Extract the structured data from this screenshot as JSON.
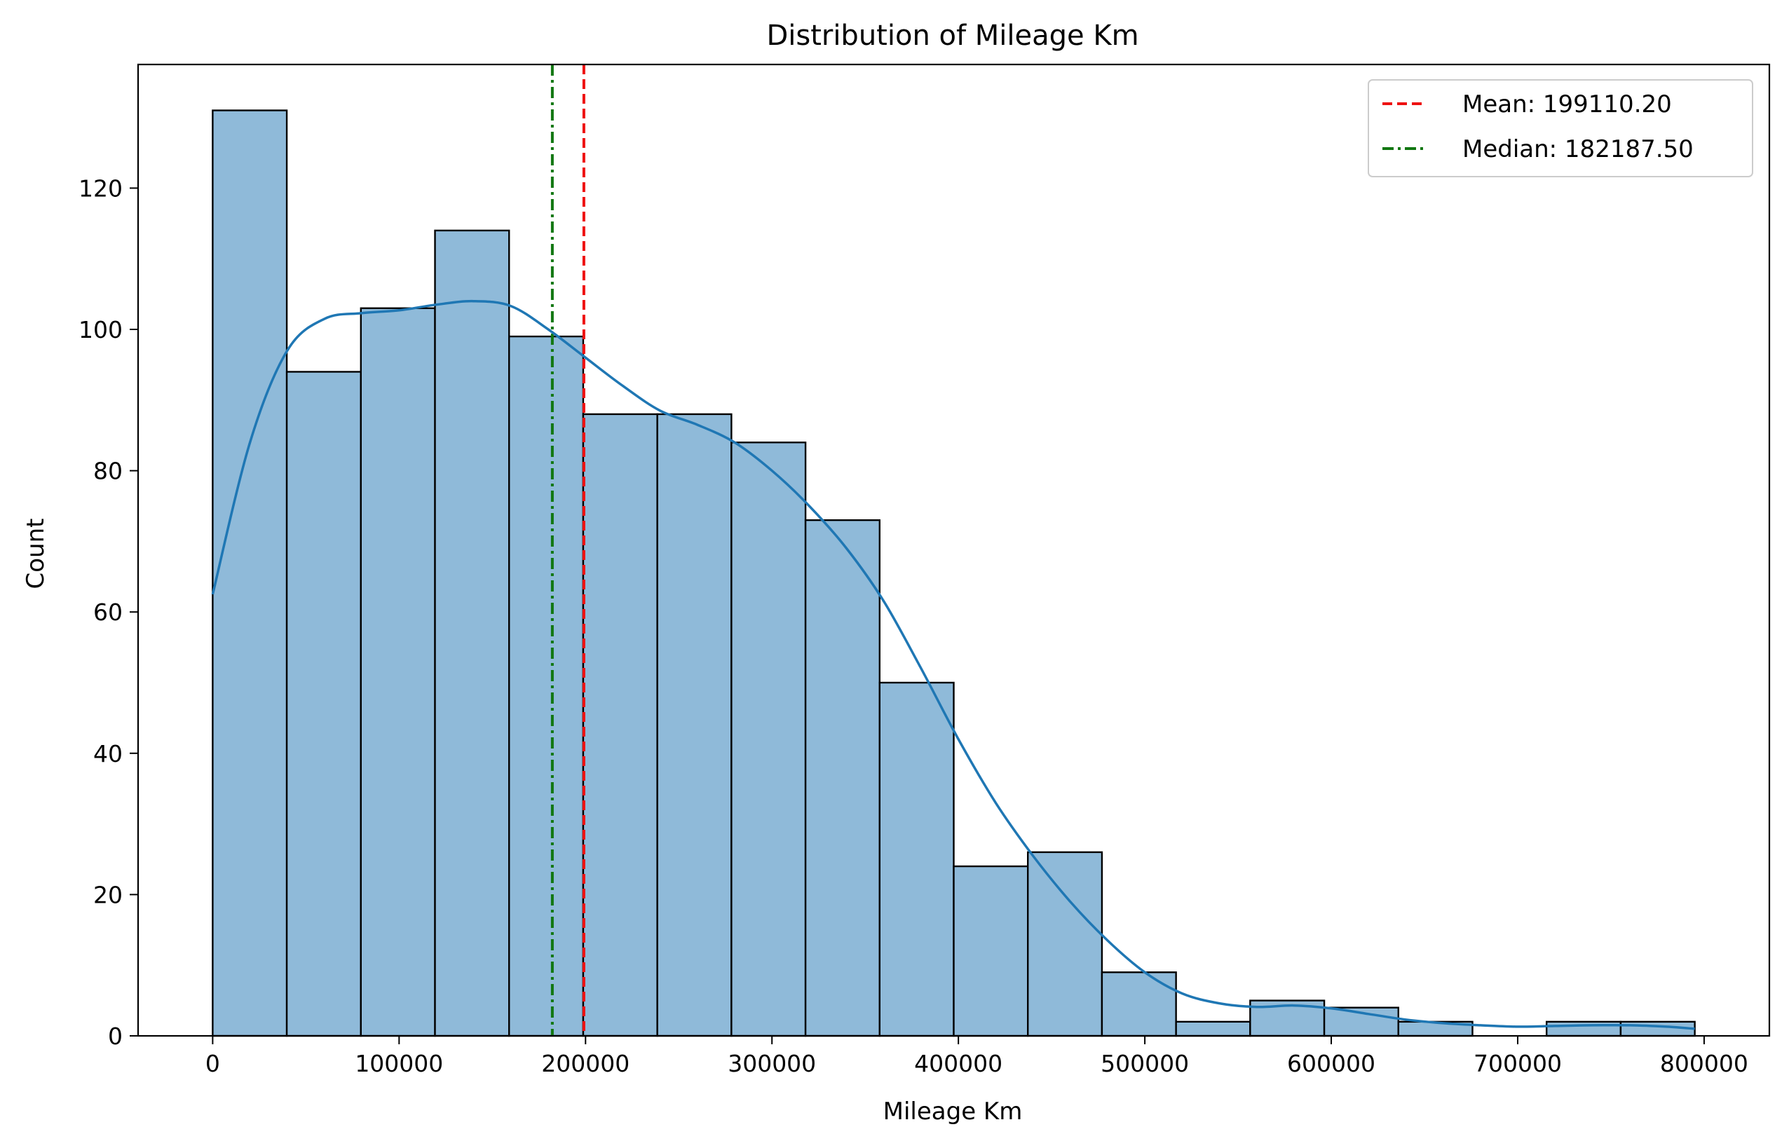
{
  "chart_data": {
    "type": "bar",
    "title": "Distribution of Mileage Km",
    "xlabel": "Mileage Km",
    "ylabel": "Count",
    "xlim": [
      -40000,
      835000
    ],
    "ylim": [
      0,
      137.5
    ],
    "x_ticks": [
      0,
      100000,
      200000,
      300000,
      400000,
      500000,
      600000,
      700000,
      800000
    ],
    "y_ticks": [
      0,
      20,
      40,
      60,
      80,
      100,
      120
    ],
    "grid": false,
    "legend_position": "top-right",
    "histogram": {
      "bin_start": 0,
      "bin_width": 39750,
      "counts": [
        131,
        94,
        103,
        114,
        99,
        88,
        88,
        84,
        73,
        50,
        24,
        26,
        9,
        2,
        5,
        4,
        2,
        0,
        2,
        2
      ],
      "fill_color": "#8fbad9",
      "edge_color": "#000000"
    },
    "kde": {
      "color": "#1f77b4",
      "x": [
        0,
        20000,
        40000,
        60000,
        80000,
        100000,
        120000,
        140000,
        160000,
        180000,
        200000,
        220000,
        240000,
        260000,
        280000,
        300000,
        320000,
        340000,
        360000,
        380000,
        400000,
        420000,
        440000,
        460000,
        480000,
        500000,
        520000,
        540000,
        560000,
        580000,
        600000,
        620000,
        640000,
        660000,
        680000,
        700000,
        720000,
        740000,
        760000,
        780000,
        795000
      ],
      "y": [
        62.5,
        84,
        97,
        101.5,
        102.3,
        102.7,
        103.5,
        104,
        103.3,
        100,
        96,
        92,
        88.5,
        86.5,
        84,
        80,
        75,
        69,
        61.5,
        52,
        42,
        33,
        25.5,
        19,
        13.5,
        9,
        6,
        4.6,
        4.1,
        4.3,
        3.9,
        3.1,
        2.3,
        1.8,
        1.5,
        1.3,
        1.4,
        1.5,
        1.5,
        1.3,
        1
      ]
    },
    "reference_lines": [
      {
        "name": "Mean: 199110.20",
        "x": 199110.2,
        "color": "#ee1111",
        "style": "dashed"
      },
      {
        "name": "Median: 182187.50",
        "x": 182187.5,
        "color": "#117711",
        "style": "dashdot"
      }
    ]
  }
}
